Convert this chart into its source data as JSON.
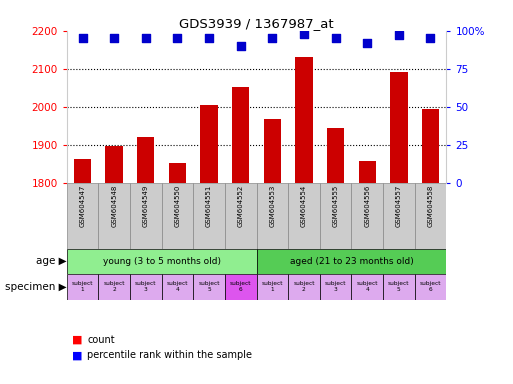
{
  "title": "GDS3939 / 1367987_at",
  "samples": [
    "GSM604547",
    "GSM604548",
    "GSM604549",
    "GSM604550",
    "GSM604551",
    "GSM604552",
    "GSM604553",
    "GSM604554",
    "GSM604555",
    "GSM604556",
    "GSM604557",
    "GSM604558"
  ],
  "counts": [
    1862,
    1898,
    1920,
    1852,
    2005,
    2052,
    1968,
    2130,
    1945,
    1858,
    2092,
    1993
  ],
  "percentile_ranks": [
    95,
    95,
    95,
    95,
    95,
    90,
    95,
    98,
    95,
    92,
    97,
    95
  ],
  "ylim_left": [
    1800,
    2200
  ],
  "ylim_right": [
    0,
    100
  ],
  "yticks_left": [
    1800,
    1900,
    2000,
    2100,
    2200
  ],
  "yticks_right": [
    0,
    25,
    50,
    75,
    100
  ],
  "ytick_right_labels": [
    "0",
    "25",
    "50",
    "75",
    "100%"
  ],
  "grid_lines": [
    1900,
    2000,
    2100
  ],
  "age_groups": [
    {
      "label": "young (3 to 5 months old)",
      "start": 0,
      "end": 6,
      "color": "#90ee90"
    },
    {
      "label": "aged (21 to 23 months old)",
      "start": 6,
      "end": 12,
      "color": "#55cc55"
    }
  ],
  "specimen_colors": [
    "#ddaaee",
    "#ddaaee",
    "#ddaaee",
    "#ddaaee",
    "#ddaaee",
    "#dd55ee",
    "#ddaaee",
    "#ddaaee",
    "#ddaaee",
    "#ddaaee",
    "#ddaaee",
    "#ddaaee"
  ],
  "specimen_labels": [
    "subject\n1",
    "subject\n2",
    "subject\n3",
    "subject\n4",
    "subject\n5",
    "subject\n6",
    "subject\n1",
    "subject\n2",
    "subject\n3",
    "subject\n4",
    "subject\n5",
    "subject\n6"
  ],
  "bar_color": "#cc0000",
  "dot_color": "#0000cc",
  "tick_bg_color": "#cccccc",
  "background_color": "#ffffff",
  "age_label": "age",
  "specimen_label": "specimen",
  "legend_count": "count",
  "legend_pct": "percentile rank within the sample"
}
